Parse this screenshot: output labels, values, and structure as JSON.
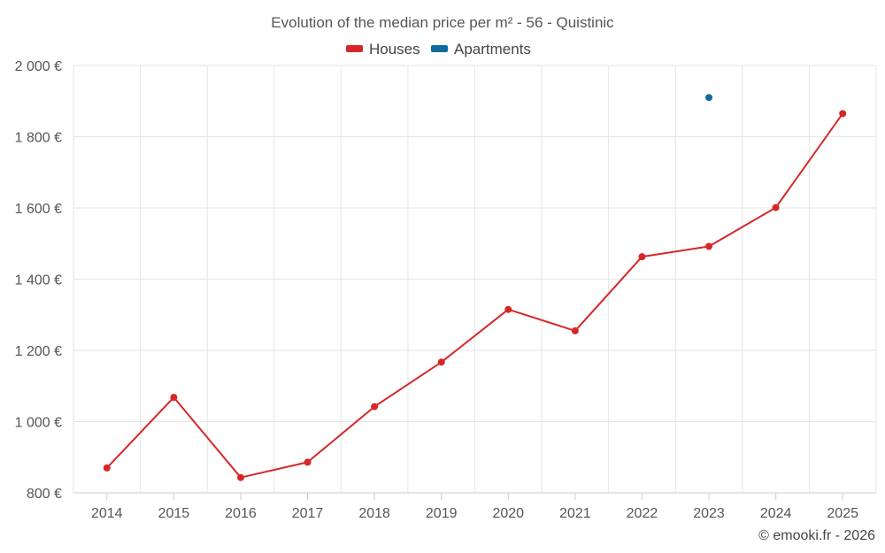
{
  "chart_data": {
    "type": "line",
    "title": "Evolution of the median price per m² - 56 - Quistinic",
    "categories": [
      "2014",
      "2015",
      "2016",
      "2017",
      "2018",
      "2019",
      "2020",
      "2021",
      "2022",
      "2023",
      "2024",
      "2025"
    ],
    "series": [
      {
        "name": "Houses",
        "color": "#d62728",
        "values": [
          870,
          1068,
          843,
          886,
          1042,
          1167,
          1315,
          1255,
          1463,
          1492,
          1601,
          1865
        ]
      },
      {
        "name": "Apartments",
        "color": "#0f6a9e",
        "values": [
          null,
          null,
          null,
          null,
          null,
          null,
          null,
          null,
          null,
          1910,
          null,
          null
        ]
      }
    ],
    "yticks": [
      "800 €",
      "1 000 €",
      "1 200 €",
      "1 400 €",
      "1 600 €",
      "1 800 €",
      "2 000 €"
    ],
    "ytick_values": [
      800,
      1000,
      1200,
      1400,
      1600,
      1800,
      2000
    ],
    "ylim": [
      800,
      2000
    ],
    "xlabel": "",
    "ylabel": "",
    "grid": true,
    "legend_position": "top-center"
  },
  "credit": "© emooki.fr - 2026"
}
